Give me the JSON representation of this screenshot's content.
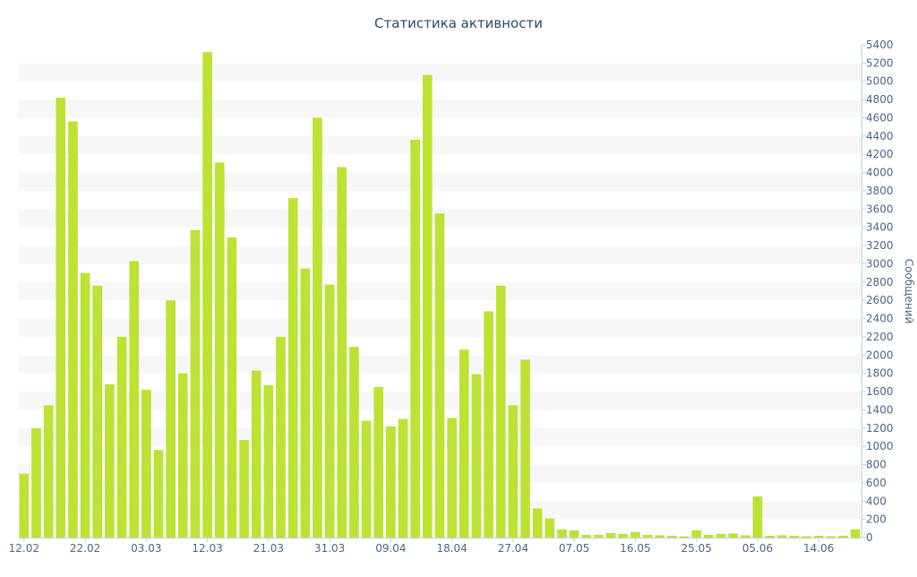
{
  "chart_data": {
    "type": "bar",
    "title": "Статистика активности",
    "ylabel": "Сообщений",
    "ylim": [
      0,
      5400
    ],
    "ytick_step": 200,
    "grid": "horizontal alternating bands",
    "yaxis_side": "right",
    "x_tick_labels": [
      {
        "index": 0,
        "label": "12.02"
      },
      {
        "index": 5,
        "label": "22.02"
      },
      {
        "index": 10,
        "label": "03.03"
      },
      {
        "index": 15,
        "label": "12.03"
      },
      {
        "index": 20,
        "label": "21.03"
      },
      {
        "index": 25,
        "label": "31.03"
      },
      {
        "index": 30,
        "label": "09.04"
      },
      {
        "index": 35,
        "label": "18.04"
      },
      {
        "index": 40,
        "label": "27.04"
      },
      {
        "index": 45,
        "label": "07.05"
      },
      {
        "index": 50,
        "label": "16.05"
      },
      {
        "index": 55,
        "label": "25.05"
      },
      {
        "index": 60,
        "label": "05.06"
      },
      {
        "index": 65,
        "label": "14.06"
      }
    ],
    "series": [
      {
        "values": [
          700,
          1200,
          1450,
          4820,
          4560,
          2900,
          2760,
          1680,
          2200,
          3030,
          1620,
          960,
          2600,
          1800,
          3370,
          5320,
          4110,
          3290,
          1070,
          1830,
          1670,
          2200,
          3720,
          2950,
          4600,
          2770,
          4060,
          2090,
          1280,
          1650,
          1220,
          1300,
          4360,
          5070,
          3550,
          1310,
          2060,
          1790,
          2480,
          2760,
          1450,
          1950,
          320,
          210,
          90,
          80,
          30,
          30,
          50,
          40,
          60,
          30,
          25,
          20,
          15,
          80,
          30,
          40,
          45,
          25,
          450,
          20,
          25,
          20,
          15,
          20,
          15,
          20,
          90
        ]
      }
    ],
    "colors": {
      "bar": "#bde233",
      "grid_band": "#f7f7f7",
      "text": "#4d6589",
      "title": "#274b6d",
      "axis": "#c0d0e0"
    }
  }
}
